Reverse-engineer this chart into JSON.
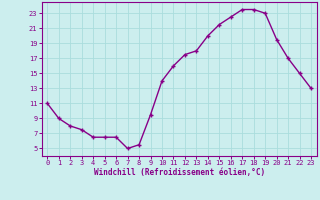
{
  "x": [
    0,
    1,
    2,
    3,
    4,
    5,
    6,
    7,
    8,
    9,
    10,
    11,
    12,
    13,
    14,
    15,
    16,
    17,
    18,
    19,
    20,
    21,
    22,
    23
  ],
  "y": [
    11,
    9,
    8,
    7.5,
    6.5,
    6.5,
    6.5,
    5,
    5.5,
    9.5,
    14,
    16,
    17.5,
    18,
    20,
    21.5,
    22.5,
    23.5,
    23.5,
    23,
    19.5,
    17,
    15,
    13
  ],
  "line_color": "#880088",
  "bg_color": "#cceeee",
  "grid_color": "#aadddd",
  "xlabel": "Windchill (Refroidissement éolien,°C)",
  "ylim": [
    4,
    24.5
  ],
  "xlim": [
    -0.5,
    23.5
  ],
  "yticks": [
    5,
    7,
    9,
    11,
    13,
    15,
    17,
    19,
    21,
    23
  ],
  "xticks": [
    0,
    1,
    2,
    3,
    4,
    5,
    6,
    7,
    8,
    9,
    10,
    11,
    12,
    13,
    14,
    15,
    16,
    17,
    18,
    19,
    20,
    21,
    22,
    23
  ],
  "marker": "+",
  "markersize": 3.5,
  "linewidth": 1.0
}
